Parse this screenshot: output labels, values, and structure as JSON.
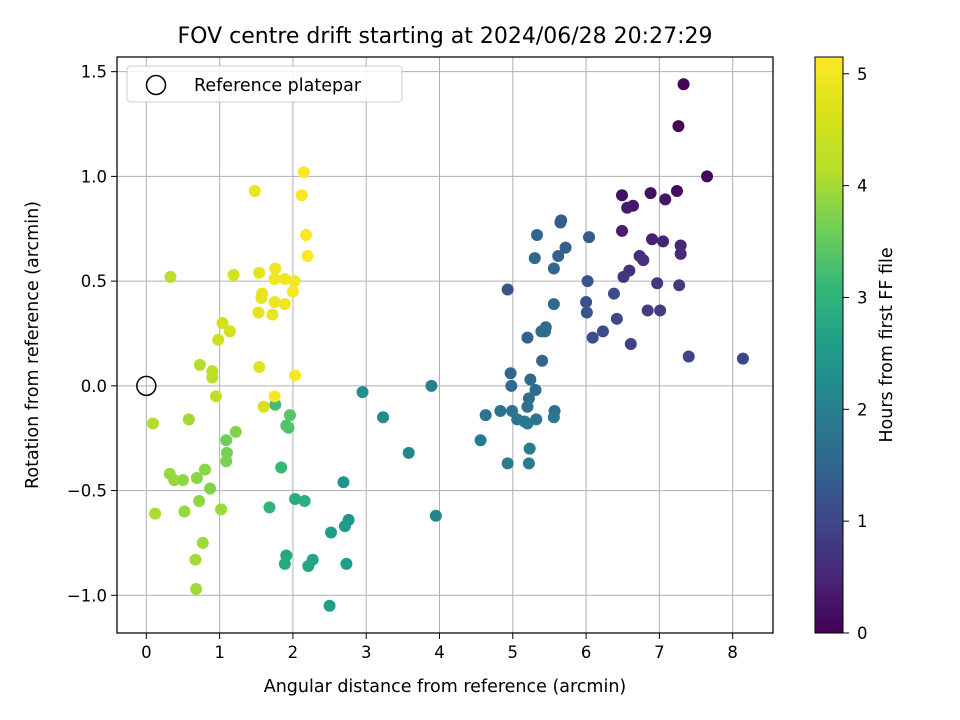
{
  "chart_data": {
    "type": "scatter",
    "title": "FOV centre drift starting at 2024/06/28 20:27:29",
    "xlabel": "Angular distance from reference (arcmin)",
    "ylabel": "Rotation from reference (arcmin)",
    "xlim": [
      -0.4,
      8.55
    ],
    "ylim": [
      -1.18,
      1.57
    ],
    "xticks": [
      0,
      1,
      2,
      3,
      4,
      5,
      6,
      7,
      8
    ],
    "xtick_labels": [
      "0",
      "1",
      "2",
      "3",
      "4",
      "5",
      "6",
      "7",
      "8"
    ],
    "yticks": [
      -1.0,
      -0.5,
      0.0,
      0.5,
      1.0,
      1.5
    ],
    "ytick_labels": [
      "−1.0",
      "−0.5",
      "0.0",
      "0.5",
      "1.0",
      "1.5"
    ],
    "grid": true,
    "legend": {
      "position": "top-left",
      "entries": [
        "Reference platepar"
      ]
    },
    "reference_point": {
      "label": "Reference platepar",
      "x": 0.0,
      "y": 0.0
    },
    "colorbar": {
      "label": "Hours from first FF file",
      "colormap": "viridis",
      "range": [
        0,
        5.15
      ],
      "ticks": [
        0,
        1,
        2,
        3,
        4,
        5
      ],
      "tick_labels": [
        "0",
        "1",
        "2",
        "3",
        "4",
        "5"
      ]
    },
    "series": [
      {
        "color_by": "hours",
        "points": [
          {
            "x": 7.33,
            "y": 1.44,
            "c": 0.04
          },
          {
            "x": 7.26,
            "y": 1.24,
            "c": 0.06
          },
          {
            "x": 7.65,
            "y": 1.0,
            "c": 0.1
          },
          {
            "x": 7.24,
            "y": 0.93,
            "c": 0.14
          },
          {
            "x": 6.88,
            "y": 0.92,
            "c": 0.18
          },
          {
            "x": 6.49,
            "y": 0.91,
            "c": 0.22
          },
          {
            "x": 7.08,
            "y": 0.89,
            "c": 0.26
          },
          {
            "x": 6.64,
            "y": 0.86,
            "c": 0.3
          },
          {
            "x": 6.56,
            "y": 0.85,
            "c": 0.34
          },
          {
            "x": 6.49,
            "y": 0.74,
            "c": 0.38
          },
          {
            "x": 6.9,
            "y": 0.7,
            "c": 0.42
          },
          {
            "x": 7.05,
            "y": 0.69,
            "c": 0.46
          },
          {
            "x": 7.29,
            "y": 0.67,
            "c": 0.5
          },
          {
            "x": 7.29,
            "y": 0.63,
            "c": 0.54
          },
          {
            "x": 6.73,
            "y": 0.62,
            "c": 0.58
          },
          {
            "x": 6.78,
            "y": 0.6,
            "c": 0.62
          },
          {
            "x": 6.59,
            "y": 0.55,
            "c": 0.66
          },
          {
            "x": 6.51,
            "y": 0.52,
            "c": 0.7
          },
          {
            "x": 6.97,
            "y": 0.49,
            "c": 0.74
          },
          {
            "x": 7.27,
            "y": 0.48,
            "c": 0.78
          },
          {
            "x": 6.84,
            "y": 0.36,
            "c": 0.82
          },
          {
            "x": 7.01,
            "y": 0.36,
            "c": 0.86
          },
          {
            "x": 6.61,
            "y": 0.2,
            "c": 0.9
          },
          {
            "x": 7.4,
            "y": 0.14,
            "c": 0.94
          },
          {
            "x": 8.14,
            "y": 0.13,
            "c": 0.98
          },
          {
            "x": 6.42,
            "y": 0.32,
            "c": 1.02
          },
          {
            "x": 6.38,
            "y": 0.44,
            "c": 1.06
          },
          {
            "x": 6.23,
            "y": 0.26,
            "c": 1.1
          },
          {
            "x": 6.09,
            "y": 0.23,
            "c": 1.14
          },
          {
            "x": 6.0,
            "y": 0.4,
            "c": 1.18
          },
          {
            "x": 6.01,
            "y": 0.35,
            "c": 1.22
          },
          {
            "x": 6.02,
            "y": 0.5,
            "c": 1.26
          },
          {
            "x": 6.04,
            "y": 0.71,
            "c": 1.3
          },
          {
            "x": 5.66,
            "y": 0.79,
            "c": 1.34
          },
          {
            "x": 5.65,
            "y": 0.78,
            "c": 1.38
          },
          {
            "x": 5.72,
            "y": 0.66,
            "c": 1.42
          },
          {
            "x": 5.62,
            "y": 0.62,
            "c": 1.46
          },
          {
            "x": 5.33,
            "y": 0.72,
            "c": 1.5
          },
          {
            "x": 5.3,
            "y": 0.61,
            "c": 1.53
          },
          {
            "x": 5.56,
            "y": 0.56,
            "c": 1.56
          },
          {
            "x": 5.56,
            "y": 0.39,
            "c": 1.59
          },
          {
            "x": 5.45,
            "y": 0.28,
            "c": 1.62
          },
          {
            "x": 5.39,
            "y": 0.26,
            "c": 1.65
          },
          {
            "x": 5.44,
            "y": 0.26,
            "c": 1.68
          },
          {
            "x": 5.2,
            "y": 0.23,
            "c": 1.45
          },
          {
            "x": 4.93,
            "y": 0.46,
            "c": 1.25
          },
          {
            "x": 5.4,
            "y": 0.12,
            "c": 1.5
          },
          {
            "x": 4.97,
            "y": 0.06,
            "c": 1.55
          },
          {
            "x": 5.24,
            "y": 0.03,
            "c": 1.58
          },
          {
            "x": 4.98,
            "y": 0.0,
            "c": 1.6
          },
          {
            "x": 5.31,
            "y": -0.02,
            "c": 1.63
          },
          {
            "x": 5.22,
            "y": -0.06,
            "c": 1.66
          },
          {
            "x": 5.2,
            "y": -0.1,
            "c": 1.7
          },
          {
            "x": 5.57,
            "y": -0.12,
            "c": 1.72
          },
          {
            "x": 4.99,
            "y": -0.12,
            "c": 1.74
          },
          {
            "x": 4.83,
            "y": -0.12,
            "c": 1.76
          },
          {
            "x": 4.63,
            "y": -0.14,
            "c": 1.78
          },
          {
            "x": 5.06,
            "y": -0.16,
            "c": 1.8
          },
          {
            "x": 5.32,
            "y": -0.16,
            "c": 1.82
          },
          {
            "x": 5.56,
            "y": -0.15,
            "c": 1.84
          },
          {
            "x": 5.16,
            "y": -0.17,
            "c": 1.86
          },
          {
            "x": 5.2,
            "y": -0.18,
            "c": 1.88
          },
          {
            "x": 4.56,
            "y": -0.26,
            "c": 1.9
          },
          {
            "x": 5.23,
            "y": -0.3,
            "c": 1.92
          },
          {
            "x": 5.22,
            "y": -0.37,
            "c": 1.94
          },
          {
            "x": 4.93,
            "y": -0.37,
            "c": 1.95
          },
          {
            "x": 3.89,
            "y": 0.0,
            "c": 2.05
          },
          {
            "x": 2.95,
            "y": -0.03,
            "c": 2.3
          },
          {
            "x": 3.23,
            "y": -0.15,
            "c": 2.2
          },
          {
            "x": 3.58,
            "y": -0.32,
            "c": 2.15
          },
          {
            "x": 3.95,
            "y": -0.62,
            "c": 2.1
          },
          {
            "x": 2.69,
            "y": -0.46,
            "c": 2.4
          },
          {
            "x": 2.76,
            "y": -0.64,
            "c": 2.45
          },
          {
            "x": 2.71,
            "y": -0.67,
            "c": 2.5
          },
          {
            "x": 2.52,
            "y": -0.7,
            "c": 2.55
          },
          {
            "x": 2.73,
            "y": -0.85,
            "c": 2.6
          },
          {
            "x": 2.27,
            "y": -0.83,
            "c": 2.65
          },
          {
            "x": 2.21,
            "y": -0.86,
            "c": 2.7
          },
          {
            "x": 2.5,
            "y": -1.05,
            "c": 2.6
          },
          {
            "x": 1.91,
            "y": -0.81,
            "c": 2.75
          },
          {
            "x": 1.89,
            "y": -0.85,
            "c": 2.8
          },
          {
            "x": 2.03,
            "y": -0.54,
            "c": 2.85
          },
          {
            "x": 2.16,
            "y": -0.55,
            "c": 2.9
          },
          {
            "x": 1.68,
            "y": -0.58,
            "c": 3.0
          },
          {
            "x": 1.84,
            "y": -0.39,
            "c": 3.1
          },
          {
            "x": 1.94,
            "y": -0.2,
            "c": 3.3
          },
          {
            "x": 1.91,
            "y": -0.19,
            "c": 3.35
          },
          {
            "x": 1.96,
            "y": -0.14,
            "c": 3.4
          },
          {
            "x": 1.76,
            "y": -0.09,
            "c": 3.2
          },
          {
            "x": 1.09,
            "y": -0.26,
            "c": 3.6
          },
          {
            "x": 1.1,
            "y": -0.32,
            "c": 3.65
          },
          {
            "x": 1.09,
            "y": -0.36,
            "c": 3.7
          },
          {
            "x": 1.22,
            "y": -0.22,
            "c": 3.75
          },
          {
            "x": 0.87,
            "y": -0.49,
            "c": 3.75
          },
          {
            "x": 0.8,
            "y": -0.4,
            "c": 3.8
          },
          {
            "x": 0.69,
            "y": -0.44,
            "c": 3.8
          },
          {
            "x": 0.72,
            "y": -0.55,
            "c": 3.85
          },
          {
            "x": 0.5,
            "y": -0.45,
            "c": 3.85
          },
          {
            "x": 0.38,
            "y": -0.45,
            "c": 3.9
          },
          {
            "x": 0.32,
            "y": -0.42,
            "c": 3.9
          },
          {
            "x": 0.52,
            "y": -0.6,
            "c": 3.9
          },
          {
            "x": 1.02,
            "y": -0.59,
            "c": 3.95
          },
          {
            "x": 0.77,
            "y": -0.75,
            "c": 3.95
          },
          {
            "x": 0.67,
            "y": -0.83,
            "c": 4.0
          },
          {
            "x": 0.68,
            "y": -0.97,
            "c": 4.0
          },
          {
            "x": 0.12,
            "y": -0.61,
            "c": 4.05
          },
          {
            "x": 0.09,
            "y": -0.18,
            "c": 4.1
          },
          {
            "x": 0.58,
            "y": -0.16,
            "c": 4.0
          },
          {
            "x": 0.9,
            "y": 0.04,
            "c": 4.2
          },
          {
            "x": 0.9,
            "y": 0.07,
            "c": 4.25
          },
          {
            "x": 0.73,
            "y": 0.1,
            "c": 4.15
          },
          {
            "x": 0.95,
            "y": -0.05,
            "c": 4.3
          },
          {
            "x": 0.33,
            "y": 0.52,
            "c": 4.2
          },
          {
            "x": 0.98,
            "y": 0.22,
            "c": 4.5
          },
          {
            "x": 1.04,
            "y": 0.3,
            "c": 4.55
          },
          {
            "x": 1.14,
            "y": 0.26,
            "c": 4.55
          },
          {
            "x": 1.19,
            "y": 0.53,
            "c": 4.6
          },
          {
            "x": 1.54,
            "y": 0.09,
            "c": 4.75
          },
          {
            "x": 1.6,
            "y": -0.1,
            "c": 4.65
          },
          {
            "x": 1.53,
            "y": 0.35,
            "c": 4.85
          },
          {
            "x": 1.57,
            "y": 0.42,
            "c": 4.8
          },
          {
            "x": 1.58,
            "y": 0.44,
            "c": 4.85
          },
          {
            "x": 1.54,
            "y": 0.54,
            "c": 4.8
          },
          {
            "x": 1.72,
            "y": 0.34,
            "c": 4.9
          },
          {
            "x": 1.75,
            "y": 0.4,
            "c": 4.95
          },
          {
            "x": 1.89,
            "y": 0.39,
            "c": 4.95
          },
          {
            "x": 1.75,
            "y": 0.51,
            "c": 4.95
          },
          {
            "x": 1.76,
            "y": 0.56,
            "c": 5.0
          },
          {
            "x": 1.89,
            "y": 0.51,
            "c": 5.0
          },
          {
            "x": 2.0,
            "y": 0.45,
            "c": 5.05
          },
          {
            "x": 2.02,
            "y": 0.5,
            "c": 5.0
          },
          {
            "x": 2.03,
            "y": 0.05,
            "c": 5.1
          },
          {
            "x": 1.75,
            "y": -0.05,
            "c": 5.05
          },
          {
            "x": 1.48,
            "y": 0.93,
            "c": 4.9
          },
          {
            "x": 2.12,
            "y": 0.91,
            "c": 5.1
          },
          {
            "x": 2.15,
            "y": 1.02,
            "c": 5.12
          },
          {
            "x": 2.18,
            "y": 0.72,
            "c": 5.12
          },
          {
            "x": 2.2,
            "y": 0.62,
            "c": 5.12
          }
        ]
      }
    ]
  }
}
